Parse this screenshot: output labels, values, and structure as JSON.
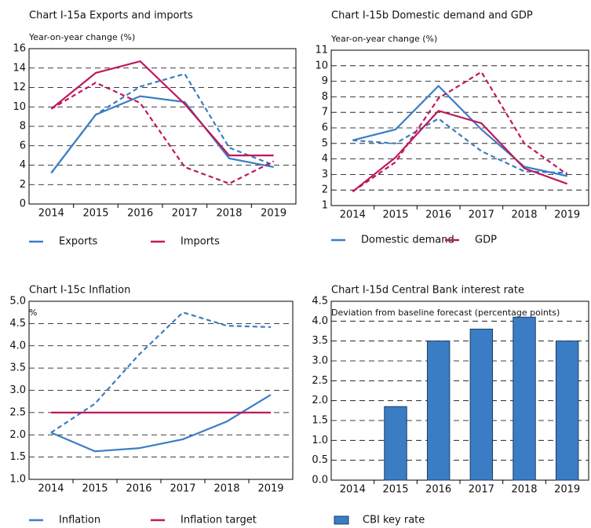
{
  "chart_data": [
    {
      "type": "line",
      "title": "Chart I-15a Exports and imports",
      "y_label": "Year-on-year change (%)",
      "categories": [
        "2014",
        "2015",
        "2016",
        "2017",
        "2018",
        "2019"
      ],
      "ylim": [
        0,
        16
      ],
      "yticks": [
        0,
        2,
        4,
        6,
        8,
        10,
        12,
        14,
        16
      ],
      "grid": true,
      "series": [
        {
          "name": "Exports",
          "color": "#3b7dc4",
          "values": [
            3.2,
            9.2,
            11.1,
            10.5,
            4.7,
            3.8
          ]
        },
        {
          "color": "#3b7dc4",
          "dashed": true,
          "values": [
            3.2,
            9.2,
            12.1,
            13.4,
            5.8,
            4.0
          ]
        },
        {
          "name": "Imports",
          "color": "#c0185c",
          "values": [
            9.8,
            13.5,
            14.7,
            10.3,
            5.0,
            5.0
          ]
        },
        {
          "color": "#c0185c",
          "dashed": true,
          "values": [
            9.8,
            12.5,
            10.4,
            3.8,
            2.1,
            4.4
          ]
        }
      ]
    },
    {
      "type": "line",
      "title": "Chart I-15b Domestic demand and GDP",
      "y_label": "Year-on-year change (%)",
      "categories": [
        "2014",
        "2015",
        "2016",
        "2017",
        "2018",
        "2019"
      ],
      "ylim": [
        1,
        11
      ],
      "yticks": [
        1,
        2,
        3,
        4,
        5,
        6,
        7,
        8,
        9,
        10,
        11
      ],
      "grid": true,
      "series": [
        {
          "name": "Domestic demand",
          "color": "#3b7dc4",
          "values": [
            5.2,
            5.9,
            8.7,
            5.9,
            3.5,
            2.9
          ]
        },
        {
          "color": "#3b7dc4",
          "dashed": true,
          "values": [
            5.2,
            5.0,
            6.6,
            4.5,
            3.2,
            3.1
          ]
        },
        {
          "name": "GDP",
          "color": "#c0185c",
          "values": [
            1.9,
            4.1,
            7.1,
            6.3,
            3.4,
            2.4
          ]
        },
        {
          "color": "#c0185c",
          "dashed": true,
          "values": [
            1.9,
            3.8,
            7.9,
            9.6,
            5.0,
            3.0
          ]
        }
      ]
    },
    {
      "type": "line",
      "title": "Chart I-15c Inflation",
      "y_label": "%",
      "categories": [
        "2014",
        "2015",
        "2016",
        "2017",
        "2018",
        "2019"
      ],
      "ylim": [
        1,
        5
      ],
      "yticks": [
        {
          "value": 1,
          "label": "1.0"
        },
        1.5,
        {
          "value": 2,
          "label": "2.0"
        },
        2.5,
        {
          "value": 3,
          "label": "3.0"
        },
        3.5,
        {
          "value": 4,
          "label": "4.0"
        },
        4.5,
        {
          "value": 5,
          "label": "5.0"
        }
      ],
      "grid": true,
      "series": [
        {
          "name": "Inflation",
          "color": "#3b7dc4",
          "values": [
            2.05,
            1.63,
            1.7,
            1.9,
            2.3,
            2.9
          ]
        },
        {
          "color": "#3b7dc4",
          "dashed": true,
          "values": [
            2.05,
            2.7,
            3.8,
            4.75,
            4.45,
            4.42
          ]
        },
        {
          "name": "Inflation target",
          "color": "#c0185c",
          "values": [
            2.5,
            2.5,
            2.5,
            2.5,
            2.5,
            2.5
          ]
        }
      ]
    },
    {
      "type": "bar",
      "title": "Chart I-15d Central Bank interest rate",
      "y_label": "Deviation from baseline forecast (percentage points)",
      "categories": [
        "2014",
        "2015",
        "2016",
        "2017",
        "2018",
        "2019"
      ],
      "ylim": [
        0,
        4.5
      ],
      "yticks": [
        {
          "value": 0,
          "label": "0.0"
        },
        0.5,
        {
          "value": 1,
          "label": "1.0"
        },
        1.5,
        {
          "value": 2,
          "label": "2.0"
        },
        2.5,
        {
          "value": 3,
          "label": "3.0"
        },
        3.5,
        {
          "value": 4,
          "label": "4.0"
        },
        4.5
      ],
      "grid": true,
      "series": [
        {
          "name": "CBI key rate",
          "color": "#3b7dc4",
          "values": [
            0,
            1.85,
            3.5,
            3.8,
            4.1,
            3.5
          ]
        }
      ]
    }
  ]
}
